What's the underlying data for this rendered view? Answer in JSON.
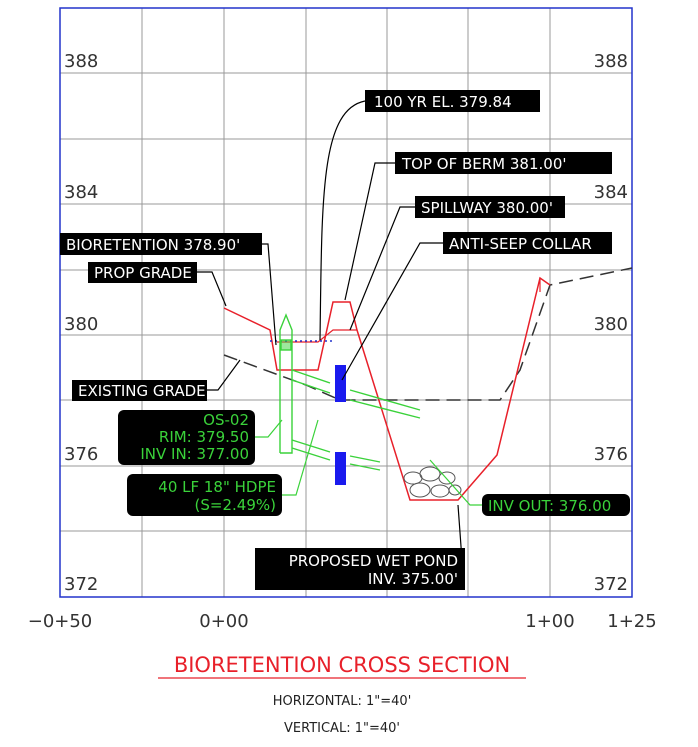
{
  "axes": {
    "elevations_left": [
      "388",
      "384",
      "380",
      "376",
      "372"
    ],
    "elevations_right": [
      "388",
      "384",
      "380",
      "376",
      "372"
    ],
    "stations": [
      "−0+50",
      "0+00",
      "1+00",
      "1+25"
    ]
  },
  "callouts": {
    "hundred_yr": "100 YR EL. 379.84",
    "top_of_berm": "TOP OF BERM 381.00'",
    "spillway": "SPILLWAY 380.00'",
    "anti_seep": "ANTI-SEEP COLLAR",
    "bioretention": "BIORETENTION 378.90'",
    "prop_grade": "PROP GRADE",
    "existing_grade": "EXISTING GRADE",
    "os_02": [
      "OS-02",
      "RIM: 379.50",
      "INV IN: 377.00"
    ],
    "pipe": [
      "40 LF 18\" HDPE",
      "(S=2.49%)"
    ],
    "inv_out": "INV OUT: 376.00",
    "wet_pond": [
      "PROPOSED WET POND",
      "INV. 375.00'"
    ]
  },
  "title": "BIORETENTION CROSS SECTION",
  "scales": [
    "HORIZONTAL: 1\"=40'",
    "VERTICAL: 1\"=40'"
  ]
}
